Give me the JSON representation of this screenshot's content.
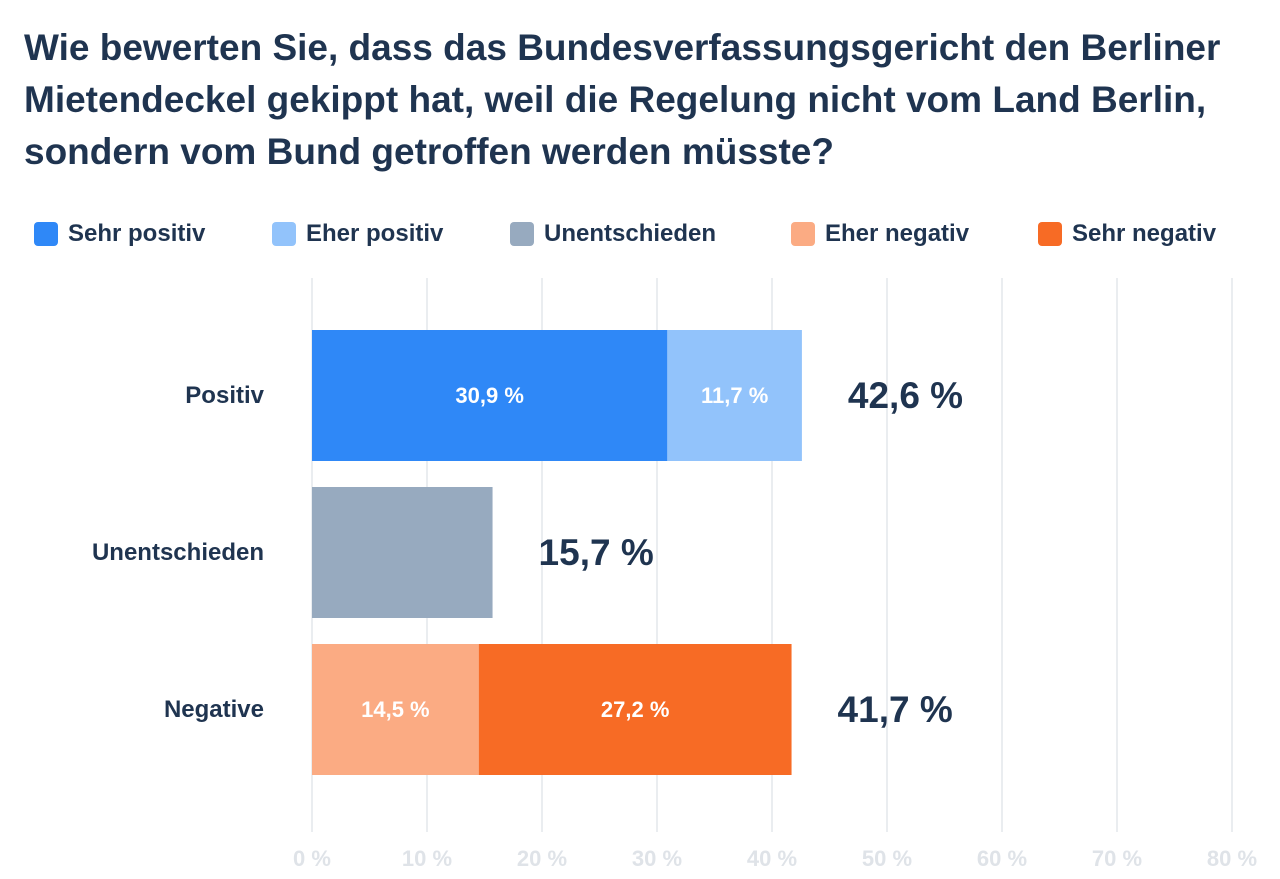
{
  "chart_data": {
    "type": "bar",
    "orientation": "horizontal",
    "stacked": true,
    "title": "Wie bewerten Sie, dass das Bundesverfassungsgericht den Berliner Mietendeckel gekippt hat, weil die Regelung nicht vom Land Berlin, sondern vom Bund getroffen werden müsste?",
    "categories": [
      "Positiv",
      "Unentschieden",
      "Negative"
    ],
    "legend": [
      {
        "name": "Sehr positiv",
        "color": "#2f88f7"
      },
      {
        "name": "Eher positiv",
        "color": "#92c3fb"
      },
      {
        "name": "Unentschieden",
        "color": "#97aabf"
      },
      {
        "name": "Eher negativ",
        "color": "#fbab83"
      },
      {
        "name": "Sehr negativ",
        "color": "#f76b25"
      }
    ],
    "legend_position": "top",
    "bars": [
      {
        "category": "Positiv",
        "total": 42.6,
        "total_label": "42,6 %",
        "segments": [
          {
            "series": "Sehr positiv",
            "value": 30.9,
            "label": "30,9 %",
            "color": "#2f88f7"
          },
          {
            "series": "Eher positiv",
            "value": 11.7,
            "label": "11,7 %",
            "color": "#92c3fb"
          }
        ]
      },
      {
        "category": "Unentschieden",
        "total": 15.7,
        "total_label": "15,7 %",
        "segments": [
          {
            "series": "Unentschieden",
            "value": 15.7,
            "label": "",
            "color": "#97aabf"
          }
        ]
      },
      {
        "category": "Negative",
        "total": 41.7,
        "total_label": "41,7 %",
        "segments": [
          {
            "series": "Eher negativ",
            "value": 14.5,
            "label": "14,5 %",
            "color": "#fbab83"
          },
          {
            "series": "Sehr negativ",
            "value": 27.2,
            "label": "27,2 %",
            "color": "#f76b25"
          }
        ]
      }
    ],
    "xlim": [
      0,
      80
    ],
    "x_ticks": [
      0,
      10,
      20,
      30,
      40,
      50,
      60,
      70,
      80
    ],
    "x_tick_labels": [
      "0 %",
      "10 %",
      "20 %",
      "30 %",
      "40 %",
      "50 %",
      "60 %",
      "70 %",
      "80 %"
    ],
    "grid": true,
    "xlabel": "",
    "ylabel": ""
  }
}
